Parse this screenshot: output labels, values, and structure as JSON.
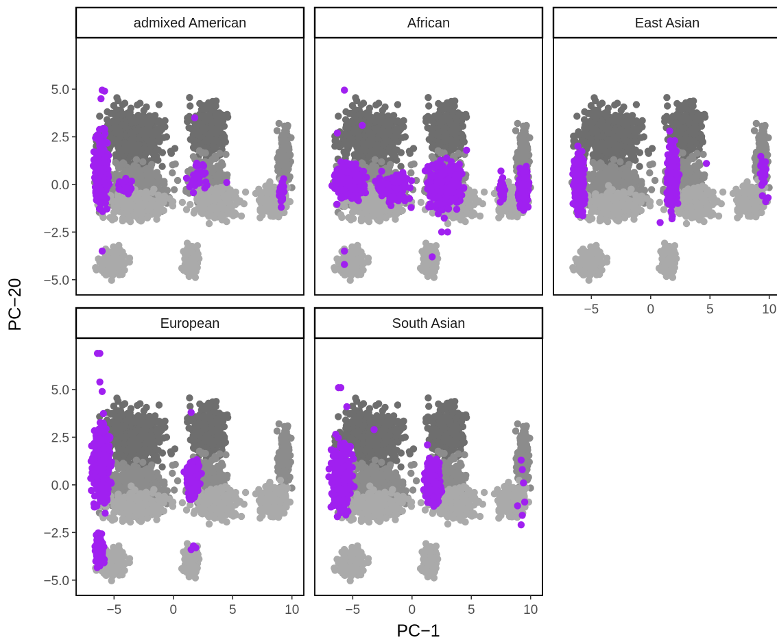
{
  "chart_data": {
    "type": "scatter",
    "layout": "faceted 2 rows x 3 columns (free-scale-less facet_wrap)",
    "xlabel": "PC−1",
    "ylabel": "PC−20",
    "xlim": [
      -8.2,
      11.0
    ],
    "ylim": [
      -5.8,
      7.7
    ],
    "x_ticks": [
      -5,
      0,
      5,
      10
    ],
    "x_tick_labels": [
      "−5",
      "0",
      "5",
      "10"
    ],
    "y_ticks": [
      -5,
      -2.5,
      0,
      2.5,
      5
    ],
    "y_tick_labels": [
      "−5.0",
      "−2.5",
      "0.0",
      "2.5",
      "5.0"
    ],
    "grid": false,
    "legend": "none",
    "colors": {
      "highlight": "#a020f0",
      "background_dark": "#6e6e6e",
      "background_mid": "#8c8c8c",
      "background_light": "#aaaaaa",
      "strip_fill": "#ffffff",
      "strip_border": "#000000"
    },
    "background_clusters": [
      {
        "shade": "dark",
        "x": [
          -7.5,
          0.5
        ],
        "y": [
          0.2,
          4.8
        ],
        "note": "upper-left cluster"
      },
      {
        "shade": "dark",
        "x": [
          0.8,
          5.0
        ],
        "y": [
          0.8,
          4.9
        ],
        "note": "upper-middle cluster"
      },
      {
        "shade": "mid",
        "x": [
          -7.5,
          0.8
        ],
        "y": [
          -1.8,
          1.6
        ],
        "note": "left band"
      },
      {
        "shade": "mid",
        "x": [
          0.8,
          5.0
        ],
        "y": [
          -1.5,
          2.0
        ],
        "note": "middle band"
      },
      {
        "shade": "mid",
        "x": [
          8.5,
          10.2
        ],
        "y": [
          -1.0,
          3.6
        ],
        "note": "right column"
      },
      {
        "shade": "light",
        "x": [
          -7.0,
          1.0
        ],
        "y": [
          -2.2,
          0.0
        ],
        "note": "lower-left spread"
      },
      {
        "shade": "light",
        "x": [
          0.8,
          6.5
        ],
        "y": [
          -2.2,
          0.2
        ],
        "note": "lower-middle spread"
      },
      {
        "shade": "light",
        "x": [
          6.5,
          10.2
        ],
        "y": [
          -2.0,
          0.4
        ],
        "note": "lower-right spread"
      },
      {
        "shade": "light",
        "x": [
          -6.8,
          -3.6
        ],
        "y": [
          -5.3,
          -3.0
        ],
        "note": "bottom-left tail"
      },
      {
        "shade": "light",
        "x": [
          0.5,
          2.4
        ],
        "y": [
          -5.1,
          -2.8
        ],
        "note": "bottom-middle tail"
      }
    ],
    "panels": [
      {
        "title": "admixed American",
        "highlight_clusters": [
          {
            "x": [
              -6.9,
              -5.2
            ],
            "y": [
              -2.2,
              3.6
            ],
            "density": "dense"
          },
          {
            "x": [
              -5.2,
              -3.0
            ],
            "y": [
              -1.0,
              0.6
            ],
            "density": "sparse"
          },
          {
            "x": [
              0.8,
              3.5
            ],
            "y": [
              -1.2,
              1.9
            ],
            "density": "sparse"
          },
          {
            "x": [
              8.8,
              9.5
            ],
            "y": [
              -1.2,
              0.4
            ],
            "density": "sparse"
          }
        ],
        "highlight_points": [
          {
            "x": -6.0,
            "y": 4.95
          },
          {
            "x": -5.8,
            "y": 4.9
          },
          {
            "x": -6.1,
            "y": 4.5
          },
          {
            "x": -6.0,
            "y": -3.5
          },
          {
            "x": 1.8,
            "y": 3.5
          },
          {
            "x": 4.5,
            "y": 0.1
          },
          {
            "x": 9.3,
            "y": 0.3
          },
          {
            "x": 9.2,
            "y": -0.8
          },
          {
            "x": 9.1,
            "y": -1.2
          }
        ]
      },
      {
        "title": "African",
        "highlight_clusters": [
          {
            "x": [
              -7.0,
              -3.5
            ],
            "y": [
              -1.3,
              1.5
            ],
            "density": "dense"
          },
          {
            "x": [
              -3.5,
              0.5
            ],
            "y": [
              -1.5,
              1.1
            ],
            "density": "medium"
          },
          {
            "x": 0.5,
            "x_range": [
              0.5,
              5.0
            ],
            "y": [
              -2.0,
              1.8
            ],
            "density": "dense"
          },
          {
            "x": [
              8.8,
              10.0
            ],
            "y": [
              -1.6,
              1.2
            ],
            "density": "dense"
          },
          {
            "x": [
              7.2,
              8.0
            ],
            "y": [
              -1.4,
              0.6
            ],
            "density": "sparse"
          }
        ],
        "highlight_points": [
          {
            "x": -5.7,
            "y": 4.95
          },
          {
            "x": -4.2,
            "y": 3.1
          },
          {
            "x": -6.3,
            "y": 2.7
          },
          {
            "x": -5.7,
            "y": -3.5
          },
          {
            "x": -5.7,
            "y": -4.2
          },
          {
            "x": 1.7,
            "y": -3.8
          },
          {
            "x": 2.5,
            "y": -2.5
          },
          {
            "x": 3.0,
            "y": -2.5
          },
          {
            "x": 4.6,
            "y": 1.8
          },
          {
            "x": 7.5,
            "y": 0.7
          }
        ]
      },
      {
        "title": "East Asian",
        "highlight_clusters": [
          {
            "x": [
              -6.7,
              -5.4
            ],
            "y": [
              -2.2,
              2.4
            ],
            "density": "dense"
          },
          {
            "x": [
              1.2,
              2.5
            ],
            "y": [
              -2.1,
              2.8
            ],
            "density": "dense"
          },
          {
            "x": [
              9.0,
              10.0
            ],
            "y": [
              -1.0,
              2.1
            ],
            "density": "sparse"
          }
        ],
        "highlight_points": [
          {
            "x": 0.8,
            "y": -2.0
          },
          {
            "x": 4.7,
            "y": 1.1
          },
          {
            "x": 1.6,
            "y": 2.8
          },
          {
            "x": 9.9,
            "y": -0.7
          },
          {
            "x": 9.7,
            "y": -0.9
          }
        ]
      },
      {
        "title": "European",
        "highlight_clusters": [
          {
            "x": [
              -7.3,
              -4.8
            ],
            "y": [
              -2.2,
              4.3
            ],
            "density": "dense"
          },
          {
            "x": [
              -6.8,
              -5.7
            ],
            "y": [
              -4.8,
              -2.2
            ],
            "density": "medium"
          },
          {
            "x": [
              0.8,
              2.5
            ],
            "y": [
              -1.3,
              1.8
            ],
            "density": "medium"
          }
        ],
        "highlight_points": [
          {
            "x": -6.4,
            "y": 6.9
          },
          {
            "x": -6.2,
            "y": 6.9
          },
          {
            "x": -6.2,
            "y": 5.4
          },
          {
            "x": -6.0,
            "y": 4.9
          },
          {
            "x": 1.5,
            "y": 3.8
          },
          {
            "x": 1.5,
            "y": -3.4
          },
          {
            "x": 1.9,
            "y": -3.3
          },
          {
            "x": 1.7,
            "y": -3.2
          }
        ]
      },
      {
        "title": "South Asian",
        "highlight_clusters": [
          {
            "x": [
              -7.2,
              -4.7
            ],
            "y": [
              -2.3,
              3.0
            ],
            "density": "dense"
          },
          {
            "x": [
              0.8,
              2.6
            ],
            "y": [
              -1.8,
              2.0
            ],
            "density": "dense"
          }
        ],
        "highlight_points": [
          {
            "x": -6.0,
            "y": 5.1
          },
          {
            "x": -6.2,
            "y": 5.1
          },
          {
            "x": -5.5,
            "y": 4.1
          },
          {
            "x": -3.2,
            "y": 2.9
          },
          {
            "x": 1.3,
            "y": 2.1
          },
          {
            "x": 9.2,
            "y": 1.3
          },
          {
            "x": 9.3,
            "y": 0.8
          },
          {
            "x": 9.5,
            "y": -0.9
          },
          {
            "x": 8.9,
            "y": -1.1
          },
          {
            "x": 9.3,
            "y": -1.6
          },
          {
            "x": 9.2,
            "y": -2.1
          },
          {
            "x": 9.4,
            "y": 0.1
          }
        ]
      }
    ]
  }
}
